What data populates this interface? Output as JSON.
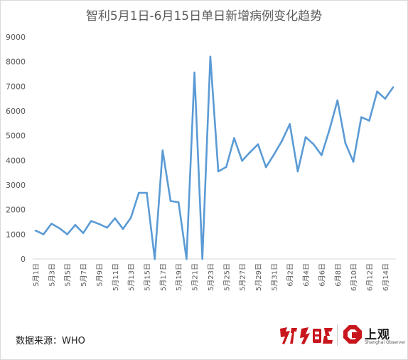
{
  "chart_data": {
    "type": "line",
    "title": "智利5月1日-6月15日单日新增病例变化趋势",
    "xlabel": "",
    "ylabel": "",
    "ylim": [
      0,
      9000
    ],
    "yticks": [
      0,
      1000,
      2000,
      3000,
      4000,
      5000,
      6000,
      7000,
      8000,
      9000
    ],
    "grid": false,
    "legend": "none",
    "line_color": "#5b9bd5",
    "categories": [
      "5月1日",
      "5月2日",
      "5月3日",
      "5月4日",
      "5月5日",
      "5月6日",
      "5月7日",
      "5月8日",
      "5月9日",
      "5月10日",
      "5月11日",
      "5月12日",
      "5月13日",
      "5月14日",
      "5月15日",
      "5月16日",
      "5月17日",
      "5月18日",
      "5月19日",
      "5月20日",
      "5月21日",
      "5月22日",
      "5月23日",
      "5月24日",
      "5月25日",
      "5月26日",
      "5月27日",
      "5月28日",
      "5月29日",
      "5月30日",
      "5月31日",
      "6月1日",
      "6月2日",
      "6月3日",
      "6月4日",
      "6月5日",
      "6月6日",
      "6月7日",
      "6月8日",
      "6月9日",
      "6月10日",
      "6月11日",
      "6月12日",
      "6月13日",
      "6月14日",
      "6月15日"
    ],
    "x_tick_labels": [
      "5月1日",
      "5月3日",
      "5月5日",
      "5月7日",
      "5月9日",
      "5月11日",
      "5月13日",
      "5月15日",
      "5月17日",
      "5月19日",
      "5月21日",
      "5月23日",
      "5月25日",
      "5月27日",
      "5月29日",
      "5月31日",
      "6月2日",
      "6月4日",
      "6月6日",
      "6月8日",
      "6月10日",
      "6月12日",
      "6月14日"
    ],
    "series": [
      {
        "values": [
          1150,
          1000,
          1430,
          1250,
          1000,
          1380,
          1050,
          1540,
          1420,
          1270,
          1650,
          1220,
          1670,
          2680,
          2680,
          0,
          4400,
          2350,
          2300,
          0,
          7560,
          0,
          8200,
          3550,
          3730,
          4900,
          3980,
          4330,
          4650,
          3720,
          4230,
          4780,
          5470,
          3550,
          4940,
          4650,
          4210,
          5250,
          6430,
          4700,
          3940,
          5750,
          5610,
          6790,
          6500,
          6960
        ]
      }
    ]
  },
  "footer": {
    "source": "数据来源：WHO",
    "logo_jiefang": "解放日报",
    "logo_shangguan": "上观",
    "logo_shangguan_sub": "Shanghai Observer"
  }
}
